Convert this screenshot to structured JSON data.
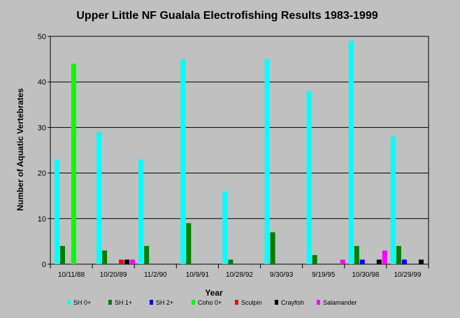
{
  "chart_data": {
    "type": "bar",
    "title": "Upper Little NF Gualala Electrofishing Results 1983-1999",
    "xlabel": "Year",
    "ylabel": "Number of Aquatic Vertebrates",
    "ylim": [
      0,
      50
    ],
    "yticks": [
      0,
      10,
      20,
      30,
      40,
      50
    ],
    "grid": true,
    "legend_position": "bottom",
    "categories": [
      "10/11/88",
      "10/20/89",
      "11/2/90",
      "10/9/91",
      "10/28/92",
      "9/30/93",
      "9/19/95",
      "10/30/98",
      "10/29/99"
    ],
    "series": [
      {
        "name": "SH 0+",
        "color": "#00ffff",
        "values": [
          23,
          29,
          23,
          45,
          16,
          45,
          38,
          49,
          28
        ]
      },
      {
        "name": "SH 1+",
        "color": "#008000",
        "values": [
          4,
          3,
          4,
          9,
          1,
          7,
          2,
          4,
          4
        ]
      },
      {
        "name": "SH 2+",
        "color": "#0000ff",
        "values": [
          0,
          0,
          0,
          0,
          0,
          0,
          0,
          1,
          1
        ]
      },
      {
        "name": "Coho 0+",
        "color": "#00ff00",
        "values": [
          44,
          0,
          0,
          0,
          0,
          0,
          0,
          0,
          0
        ]
      },
      {
        "name": "Sculpin",
        "color": "#ff0000",
        "values": [
          0,
          1,
          0,
          0,
          0,
          0,
          0,
          0,
          0
        ]
      },
      {
        "name": "Crayfish",
        "color": "#000000",
        "values": [
          0,
          1,
          0,
          0,
          0,
          0,
          0,
          1,
          1
        ]
      },
      {
        "name": "Salamander",
        "color": "#ff00ff",
        "values": [
          0,
          1,
          0,
          0,
          0,
          0,
          1,
          3,
          0
        ]
      }
    ]
  }
}
